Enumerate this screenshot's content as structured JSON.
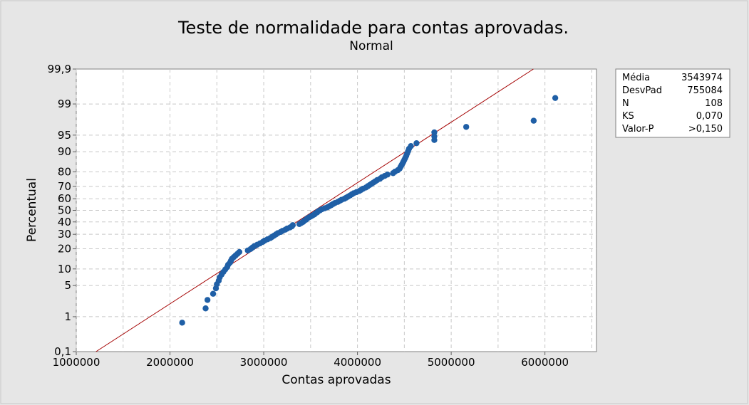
{
  "chart_data": {
    "type": "scatter",
    "title": "Teste de normalidade para contas aprovadas.",
    "subtitle": "Normal",
    "xlabel": "Contas aprovadas",
    "ylabel": "Percentual",
    "x_ticks": [
      1000000,
      2000000,
      3000000,
      4000000,
      5000000,
      6000000
    ],
    "x_tick_labels": [
      "1000000",
      "2000000",
      "3000000",
      "4000000",
      "5000000",
      "6000000"
    ],
    "y_ticks": [
      0.1,
      1,
      5,
      10,
      20,
      30,
      40,
      50,
      60,
      70,
      80,
      90,
      95,
      99,
      99.9
    ],
    "y_tick_labels": [
      "0,1",
      "1",
      "5",
      "10",
      "20",
      "30",
      "40",
      "50",
      "60",
      "70",
      "80",
      "90",
      "95",
      "99",
      "99,9"
    ],
    "xlim": [
      1000000,
      6550000
    ],
    "ylim": [
      0.1,
      99.9
    ],
    "y_scale": "normal-probability",
    "grid": true,
    "fit_line": {
      "mean": 3543974,
      "stdev": 755084,
      "color": "#a40000"
    },
    "point_color": "#1f5fa6",
    "x": [
      2130000,
      2380000,
      2400000,
      2460000,
      2490000,
      2500000,
      2520000,
      2530000,
      2550000,
      2570000,
      2590000,
      2610000,
      2620000,
      2640000,
      2650000,
      2660000,
      2680000,
      2700000,
      2720000,
      2740000,
      2830000,
      2860000,
      2880000,
      2900000,
      2930000,
      2960000,
      2990000,
      3010000,
      3040000,
      3070000,
      3090000,
      3110000,
      3130000,
      3150000,
      3180000,
      3200000,
      3230000,
      3250000,
      3280000,
      3300000,
      3310000,
      3380000,
      3400000,
      3420000,
      3430000,
      3450000,
      3460000,
      3480000,
      3500000,
      3520000,
      3540000,
      3550000,
      3570000,
      3580000,
      3600000,
      3620000,
      3650000,
      3680000,
      3700000,
      3720000,
      3740000,
      3760000,
      3790000,
      3810000,
      3830000,
      3860000,
      3880000,
      3900000,
      3920000,
      3940000,
      3960000,
      3990000,
      4020000,
      4040000,
      4060000,
      4090000,
      4110000,
      4130000,
      4150000,
      4170000,
      4190000,
      4210000,
      4240000,
      4260000,
      4290000,
      4320000,
      4380000,
      4400000,
      4430000,
      4450000,
      4460000,
      4470000,
      4480000,
      4490000,
      4500000,
      4510000,
      4520000,
      4530000,
      4540000,
      4550000,
      4570000,
      4630000,
      4820000,
      4820000,
      4820000,
      5160000,
      5880000,
      6110000
    ],
    "y": [
      0.7,
      1.6,
      2.5,
      3.4,
      4.4,
      5.3,
      6.2,
      7.1,
      8.0,
      8.9,
      9.8,
      10.7,
      11.7,
      12.6,
      13.5,
      14.4,
      15.3,
      16.2,
      17.1,
      18.1,
      19.0,
      19.9,
      20.8,
      21.7,
      22.6,
      23.5,
      24.5,
      25.4,
      26.3,
      27.2,
      28.1,
      29.0,
      29.9,
      30.9,
      31.8,
      32.7,
      33.6,
      34.5,
      35.4,
      36.3,
      37.3,
      38.2,
      39.1,
      40.0,
      40.9,
      41.8,
      42.7,
      43.7,
      44.6,
      45.5,
      46.4,
      47.3,
      48.2,
      49.1,
      50.0,
      50.9,
      51.8,
      52.7,
      53.6,
      54.5,
      55.5,
      56.4,
      57.3,
      58.2,
      59.1,
      60.0,
      60.9,
      61.8,
      62.7,
      63.7,
      64.6,
      65.5,
      66.4,
      67.3,
      68.2,
      69.1,
      70.1,
      71.0,
      71.9,
      72.8,
      73.7,
      74.6,
      75.5,
      76.5,
      77.4,
      78.3,
      79.2,
      80.1,
      81.0,
      81.9,
      82.9,
      83.8,
      84.7,
      85.6,
      86.5,
      87.4,
      88.3,
      89.3,
      90.2,
      91.1,
      92.0,
      92.9,
      93.8,
      94.7,
      95.6,
      96.6,
      97.5,
      99.3
    ]
  },
  "stats": [
    {
      "label": "Média",
      "value": "3543974"
    },
    {
      "label": "DesvPad",
      "value": "755084"
    },
    {
      "label": "N",
      "value": "108"
    },
    {
      "label": "KS",
      "value": "0,070"
    },
    {
      "label": "Valor-P",
      "value": ">0,150"
    }
  ]
}
